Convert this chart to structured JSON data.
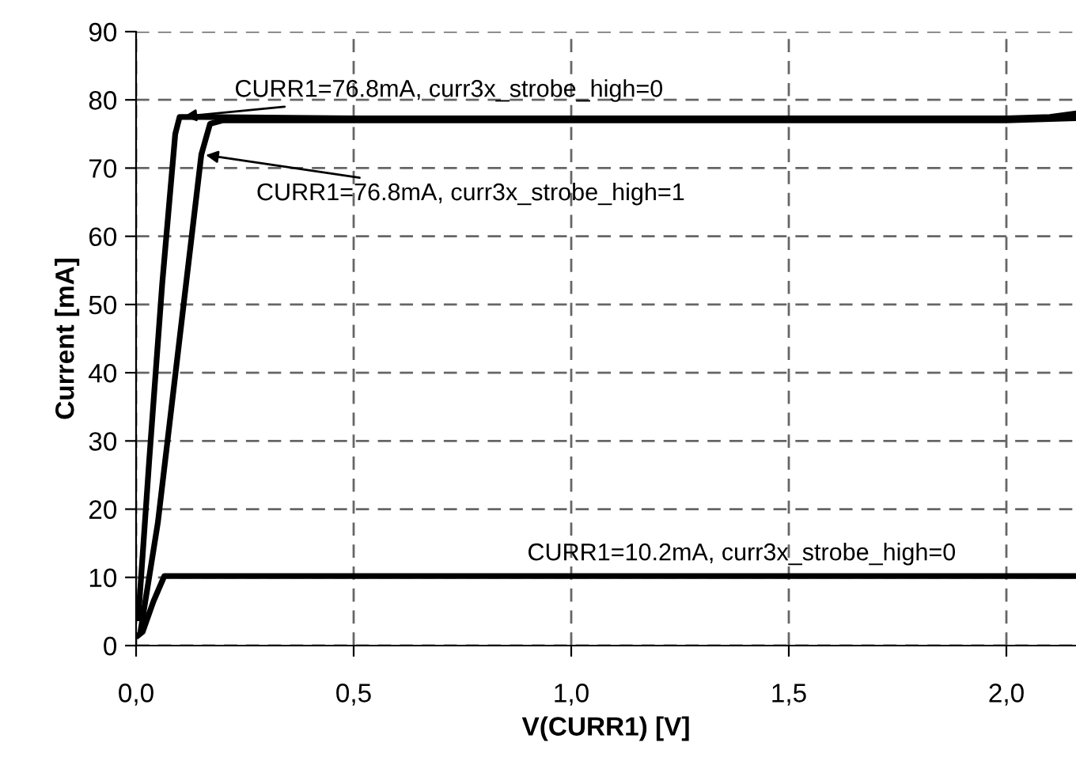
{
  "chart_data": {
    "type": "line",
    "xlabel": "V(CURR1) [V]",
    "ylabel": "Current [mA]",
    "xlim": [
      0,
      2.16
    ],
    "ylim": [
      0,
      90
    ],
    "xticks": [
      {
        "value": 0,
        "label": "0,0"
      },
      {
        "value": 0.5,
        "label": "0,5"
      },
      {
        "value": 1.0,
        "label": "1,0"
      },
      {
        "value": 1.5,
        "label": "1,5"
      },
      {
        "value": 2.0,
        "label": "2,0"
      }
    ],
    "yticks": [
      0,
      10,
      20,
      30,
      40,
      50,
      60,
      70,
      80,
      90
    ],
    "grid": true,
    "legend": false,
    "marker": "none",
    "line_style": "solid",
    "series": [
      {
        "name": "CURR1=76.8mA, curr3x_strobe_high=0",
        "color": "#000000",
        "x": [
          0.005,
          0.03,
          0.06,
          0.09,
          0.1,
          0.15,
          0.5,
          1.0,
          1.5,
          2.0,
          2.1,
          2.16
        ],
        "values": [
          4,
          27,
          53,
          75,
          77.5,
          77.5,
          77.3,
          77.3,
          77.3,
          77.3,
          77.5,
          78
        ]
      },
      {
        "name": "CURR1=76.8mA, curr3x_strobe_high=1",
        "color": "#000000",
        "x": [
          0.01,
          0.05,
          0.1,
          0.15,
          0.17,
          0.2,
          0.5,
          1.0,
          1.5,
          2.0,
          2.16
        ],
        "values": [
          2,
          18,
          45,
          72,
          76.5,
          77,
          77,
          77,
          77,
          77,
          77.3
        ]
      },
      {
        "name": "CURR1=10.2mA, curr3x_strobe_high=0",
        "color": "#000000",
        "x": [
          0.005,
          0.015,
          0.04,
          0.065,
          0.1,
          0.5,
          1.0,
          1.5,
          2.0,
          2.16
        ],
        "values": [
          1.5,
          2,
          6.5,
          10.2,
          10.2,
          10.2,
          10.2,
          10.2,
          10.2,
          10.2
        ]
      }
    ]
  }
}
